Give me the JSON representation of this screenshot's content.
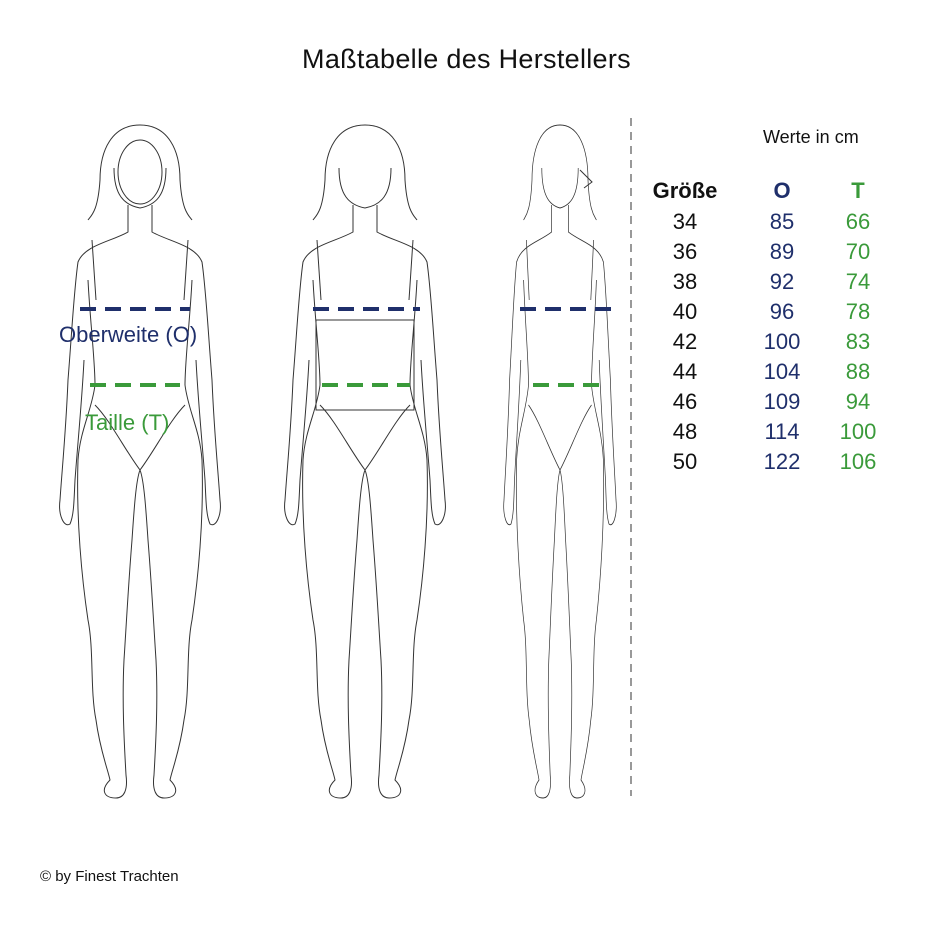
{
  "title": "Maßtabelle des Herstellers",
  "labels": {
    "bust": "Oberweite (O)",
    "waist": "Taille (T)"
  },
  "colors": {
    "bust": "#1f2f6b",
    "waist": "#3a9a3a",
    "divider": "#999999"
  },
  "table": {
    "units_note": "Werte in cm",
    "headers": {
      "size": "Größe",
      "bust": "O",
      "waist": "T"
    },
    "rows": [
      {
        "size": "34",
        "bust": "85",
        "waist": "66"
      },
      {
        "size": "36",
        "bust": "89",
        "waist": "70"
      },
      {
        "size": "38",
        "bust": "92",
        "waist": "74"
      },
      {
        "size": "40",
        "bust": "96",
        "waist": "78"
      },
      {
        "size": "42",
        "bust": "100",
        "waist": "83"
      },
      {
        "size": "44",
        "bust": "104",
        "waist": "88"
      },
      {
        "size": "46",
        "bust": "109",
        "waist": "94"
      },
      {
        "size": "48",
        "bust": "114",
        "waist": "100"
      },
      {
        "size": "50",
        "bust": "122",
        "waist": "106"
      }
    ]
  },
  "footer": "© by Finest Trachten"
}
